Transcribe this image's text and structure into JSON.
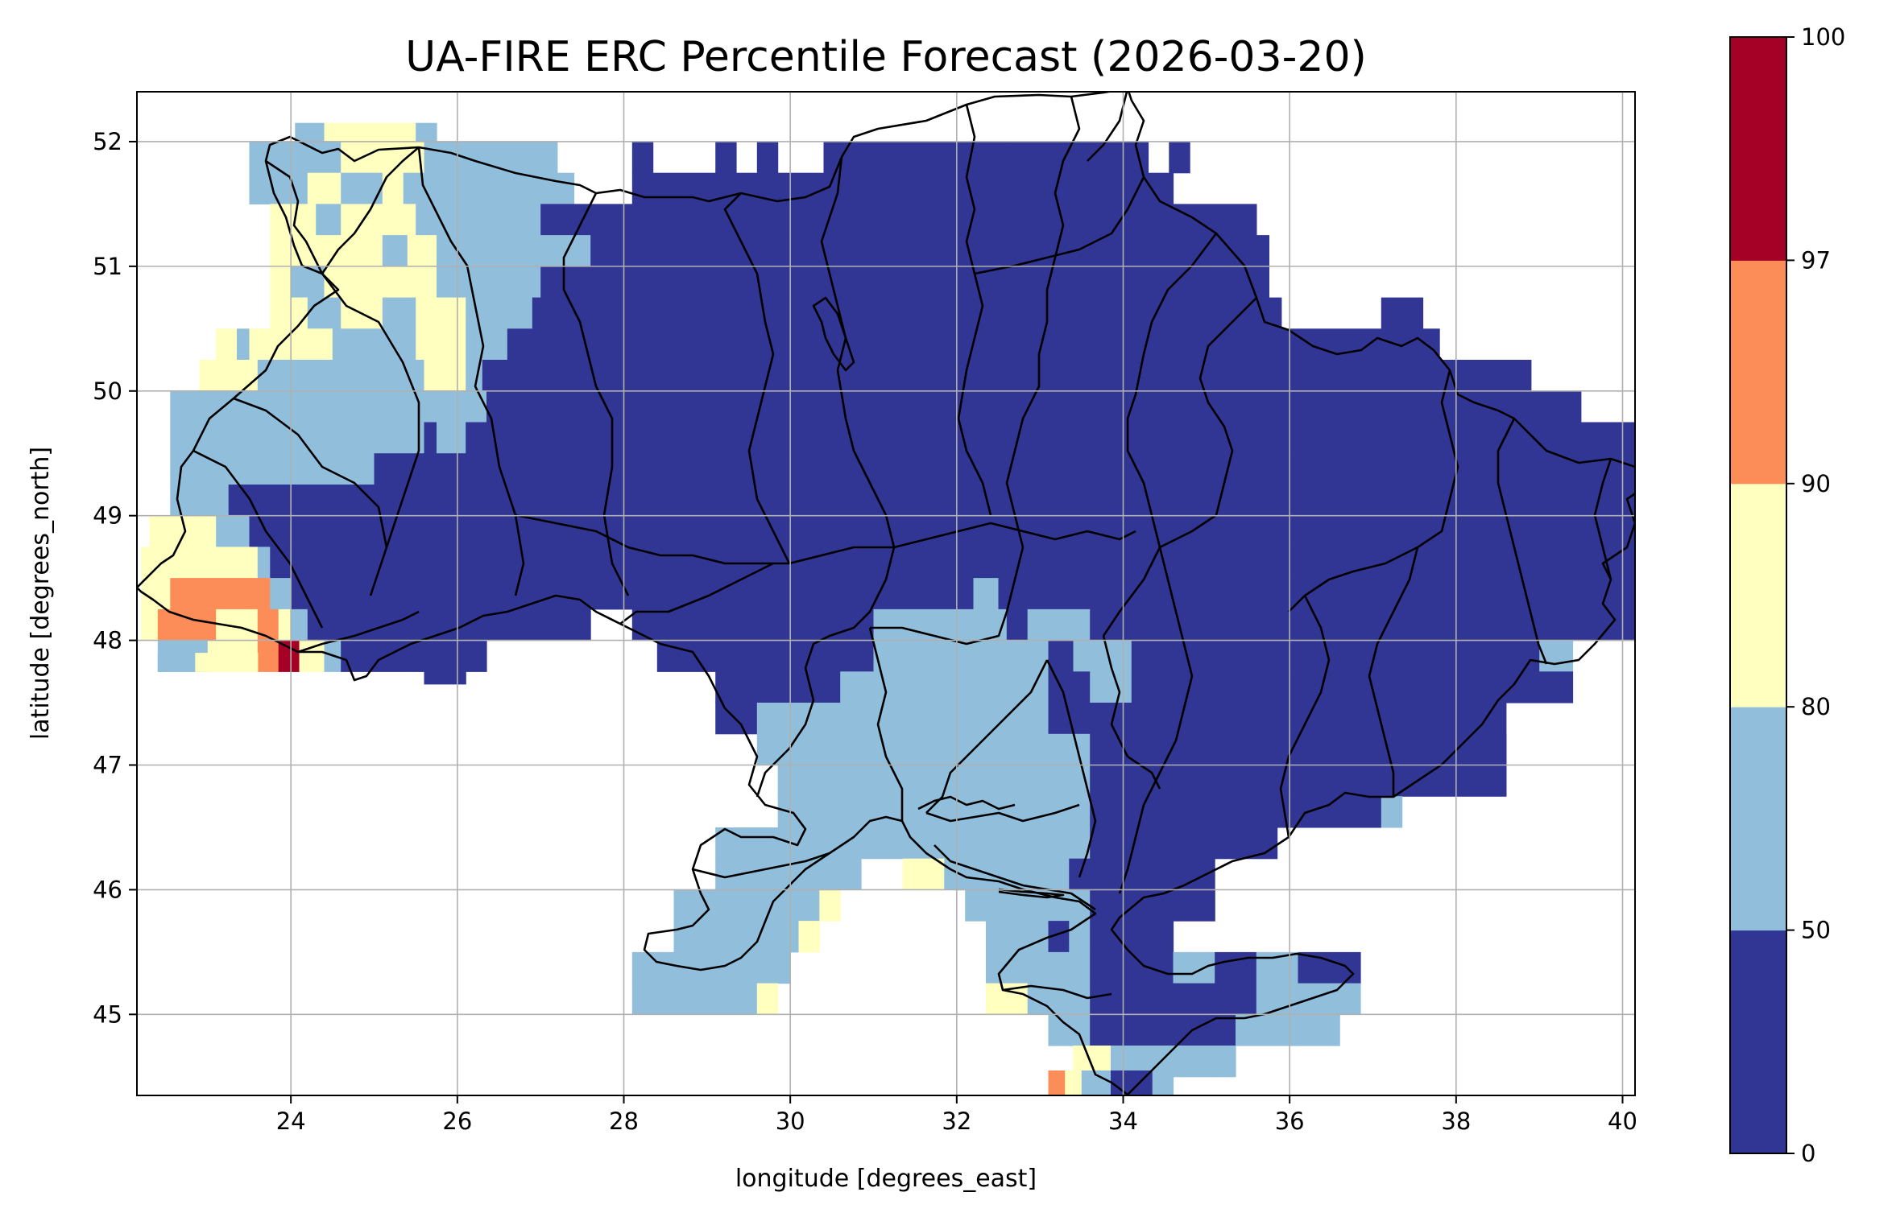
{
  "chart_data": {
    "type": "heatmap",
    "title": "UA-FIRE ERC Percentile Forecast (2026-03-20)",
    "xlabel": "longitude [degrees_east]",
    "ylabel": "latitude [degrees_north]",
    "xlim": [
      22.15,
      40.15
    ],
    "ylim": [
      44.35,
      52.4
    ],
    "x_ticks": [
      24,
      26,
      28,
      30,
      32,
      34,
      36,
      38,
      40
    ],
    "y_ticks": [
      45,
      46,
      47,
      48,
      49,
      50,
      51,
      52
    ],
    "grid": true,
    "colorbar": {
      "boundaries": [
        0,
        50,
        80,
        90,
        97,
        100
      ],
      "tick_labels": [
        "0",
        "50",
        "80",
        "90",
        "97",
        "100"
      ],
      "colors": [
        "#313695",
        "#91bfdb",
        "#ffffbf",
        "#fc8d59",
        "#a50026"
      ],
      "position": "right"
    },
    "grid_step_deg": 0.25,
    "class_legend": {
      "D": "0-50",
      "L": "50-80",
      "Y": "80-90",
      "O": "90-97",
      "R": "97-100"
    },
    "cells_key": "start_lon,end_lon,lat_bottom,lat_top,class",
    "cells": [
      "24.05,24.4,52,52.15,L",
      "24.4,25.5,52,52.15,Y",
      "25.5,25.75,52,52.15,L",
      "23.5,24.6,51.75,52,L",
      "24.6,25.6,51.75,52,Y",
      "25.6,27.2,51.75,52,L",
      "28.1,28.35,51.75,52,D",
      "29.1,29.35,51.75,52,D",
      "29.6,29.85,51.75,52,D",
      "30.4,32.6,51.75,52,D",
      "32.6,33.4,51.75,52,D",
      "33.4,34.3,51.75,52,D",
      "34.55,34.8,51.75,52,D",
      "23.5,24.2,51.5,51.75,L",
      "24.2,24.6,51.5,51.75,Y",
      "24.6,25.1,51.5,51.75,L",
      "25.1,25.35,51.5,51.75,Y",
      "25.35,27.4,51.5,51.75,L",
      "28.1,34.6,51.5,51.75,D",
      "23.75,24.3,51.25,51.5,Y",
      "24.3,24.6,51.25,51.5,L",
      "24.6,25.5,51.25,51.5,Y",
      "25.5,27.0,51.25,51.5,L",
      "27.0,35.6,51.25,51.5,D",
      "23.75,25.1,51,51.25,Y",
      "25.1,25.4,51,51.25,L",
      "25.4,25.75,51,51.25,Y",
      "25.75,27.6,51,51.25,L",
      "27.6,35.75,51,51.25,D",
      "23.75,24.0,50.75,51,Y",
      "24.0,24.4,50.75,51,L",
      "24.4,25.75,50.75,51,Y",
      "25.75,27.0,50.75,51,L",
      "27.0,35.75,50.75,51,D",
      "23.75,24.2,50.5,50.75,Y",
      "24.2,24.6,50.5,50.75,L",
      "24.6,25.1,50.5,50.75,Y",
      "25.1,25.5,50.5,50.75,L",
      "25.5,26.1,50.5,50.75,Y",
      "26.1,26.9,50.5,50.75,L",
      "26.9,35.9,50.5,50.75,D",
      "37.1,37.6,50.5,50.75,D",
      "23.1,23.35,50.25,50.5,Y",
      "23.35,23.5,50.25,50.5,L",
      "23.5,24.5,50.25,50.5,Y",
      "24.5,25.5,50.25,50.5,L",
      "25.5,26.1,50.25,50.5,Y",
      "26.1,26.6,50.25,50.5,L",
      "26.6,37.8,50.25,50.5,D",
      "22.9,23.6,50,50.25,Y",
      "23.6,25.0,50,50.25,L",
      "25.0,25.6,50,50.25,L",
      "25.6,26.1,50,50.25,Y",
      "26.1,26.3,50,50.25,L",
      "26.3,38.9,50,50.25,D",
      "22.55,23.25,49.75,50,L",
      "23.25,26.35,49.75,50,L",
      "26.35,39.5,49.75,50,D",
      "22.55,25.6,49.5,49.75,L",
      "25.6,25.75,49.5,49.75,D",
      "25.75,25.85,49.5,49.75,L",
      "25.85,26.1,49.5,49.75,L",
      "26.1,40.15,49.5,49.75,D",
      "22.55,25.0,49.25,49.5,L",
      "25.0,40.15,49.25,49.5,D",
      "22.55,23.25,49,49.25,L",
      "23.25,40.15,49,49.25,D",
      "22.3,22.55,48.75,49,Y",
      "22.55,23.1,48.75,49,Y",
      "23.1,23.5,48.75,49,L",
      "23.5,40.15,48.75,49,D",
      "22.2,23.1,48.5,48.75,Y",
      "23.1,23.6,48.5,48.75,Y",
      "23.6,23.75,48.5,48.75,L",
      "23.75,40.15,48.5,48.75,D",
      "22.2,22.55,48.25,48.5,Y",
      "22.55,23.75,48.25,48.5,O",
      "23.75,24.0,48.25,48.5,L",
      "24.0,32.2,48.25,48.5,D",
      "32.2,32.5,48.25,48.5,L",
      "32.5,40.15,48.25,48.5,D",
      "22.2,22.4,48.0,48.25,Y",
      "22.4,23.1,48.0,48.25,O",
      "23.1,23.6,48.0,48.25,Y",
      "23.6,23.85,48.0,48.25,O",
      "23.85,24.0,48.0,48.25,Y",
      "24.0,24.2,48.0,48.25,L",
      "24.2,27.6,48.0,48.25,D",
      "28.1,31.0,48.0,48.25,D",
      "31.0,32.6,48.0,48.25,L",
      "32.6,32.85,48.0,48.25,D",
      "32.85,33.6,48.0,48.25,L",
      "33.6,40.15,48.0,48.25,D",
      "22.4,23.0,47.75,48.0,L",
      "23.0,23.6,47.75,48.0,Y",
      "23.6,23.85,47.75,48.0,O",
      "23.85,24.1,47.75,48.0,R",
      "24.1,24.4,47.75,48.0,Y",
      "24.4,24.6,47.75,48.0,L",
      "24.6,26.35,47.75,48.0,D",
      "28.4,31.0,47.75,48.0,D",
      "31.0,33.1,47.75,48.0,L",
      "33.1,33.4,47.75,48.0,D",
      "33.4,34.1,47.75,48.0,L",
      "34.1,39.0,47.75,48.0,D",
      "39.0,39.4,47.75,48.0,L",
      "22.4,22.85,47.75,47.9,L",
      "22.85,23.6,47.75,47.9,Y",
      "25.6,26.1,47.65,47.75,D",
      "29.1,30.6,47.5,47.75,D",
      "30.6,33.1,47.5,47.75,L",
      "33.1,33.6,47.5,47.75,D",
      "33.6,34.1,47.5,47.75,L",
      "34.1,39.4,47.5,47.75,D",
      "29.1,29.6,47.25,47.5,D",
      "29.6,33.1,47.25,47.5,L",
      "33.1,38.6,47.25,47.5,D",
      "29.6,33.6,47,47.25,L",
      "33.6,38.6,47,47.25,D",
      "29.85,33.6,46.75,47,L",
      "33.6,38.6,46.75,47,D",
      "29.85,30.1,46.5,46.75,L",
      "30.1,33.6,46.5,46.75,L",
      "33.6,37.1,46.5,46.75,D",
      "37.1,37.35,46.5,46.75,L",
      "29.1,32.6,46.25,46.5,L",
      "32.6,33.6,46.25,46.5,L",
      "33.6,35.1,46.25,46.5,D",
      "35.1,35.6,46.25,46.5,D",
      "35.6,35.85,46.25,46.5,D",
      "29.1,30.85,46.0,46.25,L",
      "31.35,31.85,46.0,46.25,Y",
      "31.85,33.35,46.0,46.25,L",
      "33.35,35.1,46.0,46.25,D",
      "28.6,30.35,45.75,46.0,L",
      "30.35,30.6,45.75,46.0,Y",
      "32.1,33.6,45.75,46.0,L",
      "33.6,35.1,45.75,46.0,D",
      "28.6,30.1,45.5,45.75,L",
      "30.1,30.35,45.5,45.75,Y",
      "32.35,33.1,45.5,45.75,L",
      "33.1,33.35,45.5,45.75,D",
      "33.35,33.6,45.5,45.75,L",
      "33.6,34.6,45.5,45.75,D",
      "28.1,30.0,45.25,45.5,L",
      "32.35,33.6,45.25,45.5,L",
      "33.6,34.6,45.25,45.5,D",
      "34.6,35.1,45.25,45.5,L",
      "35.1,35.6,45.25,45.5,D",
      "35.6,36.1,45.25,45.5,L",
      "36.1,36.85,45.25,45.5,D",
      "28.1,29.6,45,45.25,L",
      "29.6,29.85,45,45.25,Y",
      "32.35,32.85,45,45.25,Y",
      "32.85,33.6,45,45.25,L",
      "33.6,34.35,45,45.25,D",
      "34.35,35.6,45,45.25,D",
      "35.6,36.85,45,45.25,L",
      "33.1,33.6,44.75,45,L",
      "33.6,34.1,44.75,45,D",
      "34.1,34.6,44.75,45,D",
      "34.6,35.35,44.75,45,D",
      "35.35,36.6,44.75,45,L",
      "33.4,33.6,44.5,44.75,Y",
      "33.6,33.85,44.5,44.75,Y",
      "33.85,34.35,44.5,44.75,L",
      "34.35,35.1,44.5,44.75,L",
      "35.1,35.35,44.5,44.75,L",
      "33.1,33.3,44.35,44.55,O",
      "33.3,33.5,44.35,44.55,Y",
      "33.5,33.85,44.35,44.55,L",
      "33.85,34.35,44.35,44.55,D",
      "34.35,34.6,44.35,44.55,L"
    ]
  }
}
